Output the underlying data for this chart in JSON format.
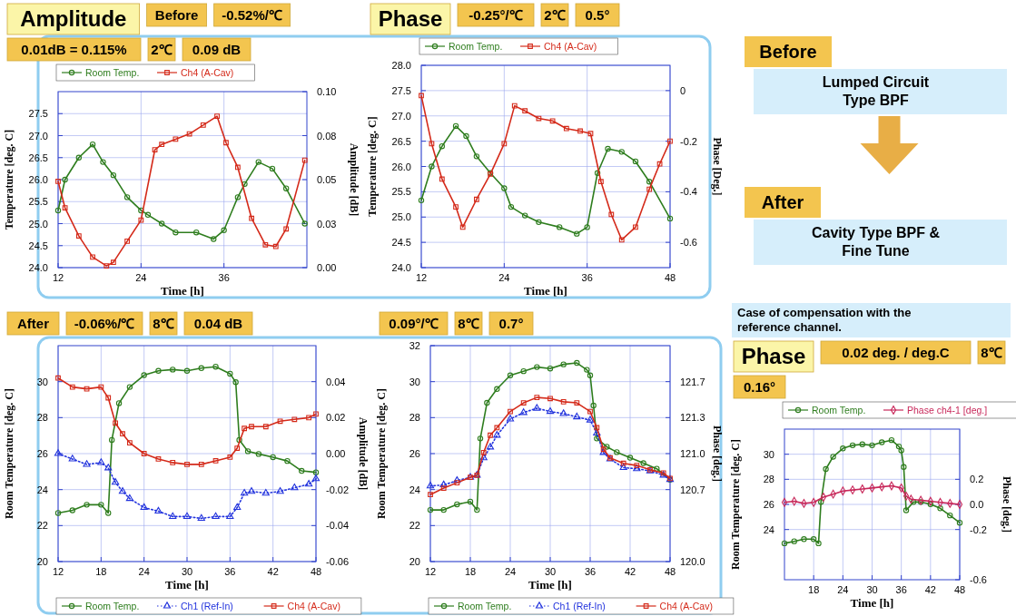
{
  "chart_data": [
    {
      "type": "line",
      "title": "Amplitude",
      "xlabel": "Time [h]",
      "ylabel": "Temperature [deg. C]",
      "y2label": "Amplitude [dB]",
      "xlim": [
        12,
        48
      ],
      "xticks": [
        12,
        24,
        36
      ],
      "ylim": [
        24,
        28
      ],
      "yticks": [
        {
          "value": 24,
          "label": "24.0"
        },
        {
          "value": 24.5,
          "label": "24.5"
        },
        {
          "value": 25,
          "label": "25.0"
        },
        {
          "value": 25.5,
          "label": "25.5"
        },
        {
          "value": 26,
          "label": "26.0"
        },
        {
          "value": 26.5,
          "label": "26.5"
        },
        {
          "value": 27,
          "label": "27.0"
        },
        {
          "value": 27.5,
          "label": "27.5"
        }
      ],
      "y2lim": [
        0,
        0.1
      ],
      "y2ticks": [
        {
          "value": 0,
          "label": "0.00"
        },
        {
          "value": 0.025,
          "label": "0.03"
        },
        0.05,
        {
          "value": 0.075,
          "label": "0.08"
        },
        {
          "value": 0.1,
          "label": "0.10"
        }
      ],
      "grid": true,
      "legend": "top",
      "annotations": [
        "Before",
        "-0.52%/℃",
        "0.01dB = 0.115%",
        "2℃",
        "0.09 dB"
      ],
      "series": [
        {
          "name": "Room Temp.",
          "color": "#2e7d1e",
          "marker": "circle",
          "line_style": "solid",
          "x": [
            12,
            13,
            15,
            17,
            18.5,
            20,
            22,
            24,
            25,
            27,
            29,
            32,
            34.5,
            36,
            38,
            39,
            41,
            43,
            45,
            47.7
          ],
          "values": [
            25.3,
            26.0,
            26.5,
            26.8,
            26.4,
            26.1,
            25.6,
            25.3,
            25.2,
            25.0,
            24.8,
            24.8,
            24.65,
            24.85,
            25.6,
            25.9,
            26.4,
            26.25,
            25.8,
            25.0
          ]
        },
        {
          "name": "Ch4 (A-Cav)",
          "color": "#d42a1a",
          "marker": "square",
          "line_style": "solid",
          "axis": "y2",
          "x": [
            12,
            13,
            15,
            17,
            19,
            20,
            22,
            24,
            26,
            27,
            29,
            31,
            33,
            35,
            36.3,
            38,
            40,
            42,
            43.5,
            45,
            47.7
          ],
          "values": [
            0.049,
            0.034,
            0.018,
            0.006,
            0.001,
            0.003,
            0.015,
            0.027,
            0.067,
            0.07,
            0.073,
            0.076,
            0.081,
            0.086,
            0.071,
            0.057,
            0.028,
            0.013,
            0.012,
            0.022,
            0.061
          ]
        }
      ]
    },
    {
      "type": "line",
      "title": "Phase",
      "xlabel": "Time [h]",
      "ylabel": "Temperature [deg. C]",
      "y2label": "Phase [Deg.]",
      "xlim": [
        12,
        48
      ],
      "xticks": [
        12,
        24,
        36,
        48
      ],
      "ylim": [
        24,
        28
      ],
      "yticks": [
        {
          "value": 24,
          "label": "24.0"
        },
        {
          "value": 24.5,
          "label": "24.5"
        },
        {
          "value": 25,
          "label": "25.0"
        },
        {
          "value": 25.5,
          "label": "25.5"
        },
        {
          "value": 26,
          "label": "26.0"
        },
        {
          "value": 26.5,
          "label": "26.5"
        },
        {
          "value": 27,
          "label": "27.0"
        },
        {
          "value": 27.5,
          "label": "27.5"
        },
        {
          "value": 28,
          "label": "28.0"
        }
      ],
      "y2lim": [
        -0.7,
        0.1
      ],
      "y2ticks": [
        0,
        -0.2,
        -0.4,
        -0.6
      ],
      "grid": true,
      "legend": "top",
      "annotations": [
        "-0.25°/℃",
        "2℃",
        "0.5°"
      ],
      "series": [
        {
          "name": "Room Temp.",
          "color": "#2e7d1e",
          "marker": "circle",
          "line_style": "solid",
          "x": [
            12,
            13.5,
            15,
            17,
            18.5,
            20,
            22,
            24,
            25,
            27,
            29,
            32,
            34.5,
            36,
            37.5,
            39,
            41,
            43,
            45,
            48
          ],
          "values": [
            25.33,
            26.0,
            26.4,
            26.8,
            26.6,
            26.2,
            25.87,
            25.57,
            25.2,
            25.03,
            24.9,
            24.8,
            24.67,
            24.8,
            25.87,
            26.35,
            26.29,
            26.1,
            25.7,
            24.97
          ]
        },
        {
          "name": "Ch4 (A-Cav)",
          "color": "#d42a1a",
          "marker": "square",
          "line_style": "solid",
          "axis": "y2",
          "x": [
            12,
            13.5,
            15,
            17,
            18,
            20,
            22,
            24,
            25.5,
            27,
            29,
            31,
            33,
            35,
            36.5,
            38,
            39.5,
            41,
            43,
            45,
            46.5,
            48
          ],
          "values": [
            -0.02,
            -0.21,
            -0.35,
            -0.46,
            -0.54,
            -0.43,
            -0.33,
            -0.21,
            -0.06,
            -0.08,
            -0.11,
            -0.12,
            -0.15,
            -0.16,
            -0.17,
            -0.36,
            -0.49,
            -0.59,
            -0.54,
            -0.39,
            -0.29,
            -0.2
          ]
        }
      ]
    },
    {
      "type": "other",
      "annotations": [
        "Before",
        "Lumped Circuit Type BPF",
        "After",
        "Cavity Type BPF & Fine Tune"
      ]
    },
    {
      "type": "line",
      "xlabel": "Time [h]",
      "ylabel": "Room Temperature [deg. C]",
      "y2label": "Amplitude [dB]",
      "xlim": [
        12,
        48
      ],
      "xticks": [
        12,
        18,
        24,
        30,
        36,
        42,
        48
      ],
      "ylim": [
        20,
        32
      ],
      "yticks": [
        20,
        22,
        24,
        26,
        28,
        30
      ],
      "y2lim": [
        -0.06,
        0.06
      ],
      "y2ticks": [
        -0.06,
        -0.04,
        -0.02,
        {
          "value": 0,
          "label": "0.00"
        },
        0.02,
        0.04
      ],
      "grid": true,
      "legend": "bottom",
      "annotations": [
        "After",
        "-0.06%/℃",
        "8℃",
        "0.04 dB"
      ],
      "series": [
        {
          "name": "Room Temp.",
          "color": "#2e7d1e",
          "marker": "circle",
          "line_style": "solid",
          "x": [
            12,
            14,
            16,
            18,
            19,
            19.5,
            20.5,
            22,
            24,
            26,
            28,
            30,
            32,
            34,
            36,
            36.8,
            37.3,
            38.5,
            40,
            42,
            44,
            46,
            48
          ],
          "values": [
            22.7,
            22.85,
            23.16,
            23.16,
            22.7,
            26.76,
            28.8,
            29.7,
            30.36,
            30.6,
            30.67,
            30.6,
            30.75,
            30.83,
            30.44,
            29.97,
            26.76,
            26.13,
            25.98,
            25.8,
            25.59,
            25.04,
            24.96
          ]
        },
        {
          "name": "Ch1 (Ref-In)",
          "color": "#2233dd",
          "marker": "triangle",
          "line_style": "dotted",
          "axis": "y2",
          "x": [
            12,
            14,
            16,
            18,
            19,
            20,
            21,
            22,
            24,
            26,
            28,
            30,
            32,
            34,
            36,
            37,
            38,
            39,
            41,
            43,
            45,
            47,
            48
          ],
          "values": [
            0.0,
            -0.003,
            -0.006,
            -0.005,
            -0.008,
            -0.016,
            -0.021,
            -0.025,
            -0.03,
            -0.032,
            -0.035,
            -0.035,
            -0.036,
            -0.035,
            -0.035,
            -0.03,
            -0.022,
            -0.021,
            -0.022,
            -0.021,
            -0.019,
            -0.017,
            -0.014
          ]
        },
        {
          "name": "Ch4 (A-Cav)",
          "color": "#d42a1a",
          "marker": "square",
          "line_style": "solid",
          "axis": "y2",
          "x": [
            12,
            14,
            16,
            18,
            19,
            20,
            21,
            22,
            24,
            26,
            28,
            30,
            32,
            34,
            36,
            37,
            38,
            39,
            41,
            43,
            45,
            47,
            48
          ],
          "values": [
            0.042,
            0.037,
            0.036,
            0.037,
            0.031,
            0.017,
            0.011,
            0.006,
            0.0,
            -0.003,
            -0.005,
            -0.006,
            -0.006,
            -0.004,
            -0.002,
            0.003,
            0.014,
            0.015,
            0.015,
            0.018,
            0.019,
            0.02,
            0.022
          ]
        }
      ]
    },
    {
      "type": "line",
      "xlabel": "Time [h]",
      "ylabel": "Room Temperature [deg. C]",
      "y2label": "Phase [deg.]",
      "xlim": [
        12,
        48
      ],
      "xticks": [
        12,
        18,
        24,
        30,
        36,
        42,
        48
      ],
      "ylim": [
        20,
        32
      ],
      "yticks": [
        20,
        22,
        24,
        26,
        28,
        30,
        32
      ],
      "y2lim": [
        120,
        122
      ],
      "y2ticks": [
        {
          "value": 120,
          "label": "120.0"
        },
        {
          "value": 120.6667,
          "label": "120.7"
        },
        {
          "value": 121,
          "label": "121.0"
        },
        {
          "value": 121.3333,
          "label": "121.3"
        },
        {
          "value": 121.6667,
          "label": "121.7"
        }
      ],
      "grid": true,
      "legend": "bottom",
      "annotations": [
        "0.09°/℃",
        "8℃",
        "0.7°"
      ],
      "series": [
        {
          "name": "Room Temp.",
          "color": "#2e7d1e",
          "marker": "circle",
          "line_style": "solid",
          "x": [
            12,
            14,
            16,
            18,
            19,
            19.5,
            20.5,
            22,
            24,
            26,
            28,
            30,
            32,
            34,
            35.5,
            36,
            36.5,
            37,
            38.5,
            40,
            42,
            44,
            46,
            48
          ],
          "values": [
            22.87,
            22.87,
            23.18,
            23.33,
            22.87,
            26.84,
            28.82,
            29.59,
            30.35,
            30.58,
            30.81,
            30.73,
            30.96,
            31.04,
            30.66,
            30.35,
            28.67,
            26.84,
            26.38,
            26.08,
            25.77,
            25.47,
            25.16,
            24.55
          ]
        },
        {
          "name": "Ch1 (Ref-In)",
          "color": "#2233dd",
          "marker": "triangle",
          "line_style": "dotted",
          "axis": "y2",
          "x": [
            12,
            14,
            16,
            18,
            19,
            20,
            21,
            22,
            24,
            26,
            28,
            30,
            32,
            34,
            36,
            37,
            38,
            39,
            41,
            43,
            45,
            47,
            48
          ],
          "values": [
            120.7,
            120.71,
            120.75,
            120.78,
            120.8,
            120.96,
            121.06,
            121.17,
            121.32,
            121.38,
            121.42,
            121.39,
            121.37,
            121.34,
            121.31,
            121.19,
            121.01,
            120.95,
            120.87,
            120.86,
            120.84,
            120.8,
            120.76
          ]
        },
        {
          "name": "Ch4 (A-Cav)",
          "color": "#d42a1a",
          "marker": "square",
          "line_style": "solid",
          "axis": "y2",
          "x": [
            12,
            14,
            16,
            18,
            19,
            20,
            21,
            22,
            24,
            26,
            28,
            30,
            32,
            34,
            36,
            37,
            38,
            39,
            41,
            43,
            45,
            47,
            48
          ],
          "values": [
            120.62,
            120.68,
            120.73,
            120.78,
            120.8,
            121.01,
            121.17,
            121.24,
            121.39,
            121.47,
            121.52,
            121.51,
            121.48,
            121.47,
            121.39,
            121.24,
            121.04,
            120.96,
            120.91,
            120.89,
            120.85,
            120.82,
            120.77
          ]
        }
      ]
    },
    {
      "type": "line",
      "title": "Phase",
      "subtitle": "Case of compensation with the reference channel.",
      "xlabel": "Time [h]",
      "ylabel": "Room Temperature [deg. C]",
      "y2label": "Phase [deg.]",
      "xlim": [
        12,
        48
      ],
      "xticks": [
        18,
        24,
        30,
        36,
        42,
        48
      ],
      "ylim": [
        20,
        32
      ],
      "yticks": [
        24,
        26,
        28,
        30
      ],
      "y2lim": [
        -0.6,
        0.6
      ],
      "y2ticks": [
        -0.6,
        -0.2,
        {
          "value": 0,
          "label": "0.0"
        },
        0.2
      ],
      "grid": true,
      "legend": "top",
      "annotations": [
        "0.02 deg. / deg.C",
        "8℃",
        "0.16°"
      ],
      "series": [
        {
          "name": "Room Temp.",
          "color": "#2e7d1e",
          "marker": "circle",
          "line_style": "solid",
          "x": [
            12,
            14,
            16,
            18,
            19,
            19.5,
            20.5,
            22,
            24,
            26,
            28,
            30,
            32,
            34,
            35.5,
            36,
            36.5,
            37,
            38.5,
            40,
            42,
            44,
            46,
            48
          ],
          "values": [
            22.9,
            23.06,
            23.23,
            23.23,
            22.9,
            26.19,
            28.82,
            29.8,
            30.46,
            30.71,
            30.79,
            30.71,
            30.95,
            31.12,
            30.62,
            30.3,
            28.98,
            25.53,
            26.19,
            26.19,
            26.02,
            25.69,
            25.12,
            24.54
          ]
        },
        {
          "name": "Phase ch4-1 [deg.]",
          "color": "#c8285a",
          "marker": "diamond",
          "line_style": "solid",
          "axis": "y2",
          "x": [
            12,
            14,
            16,
            18,
            20,
            22,
            24,
            26,
            28,
            30,
            32,
            34,
            36,
            37,
            38,
            40,
            42,
            44,
            46,
            48
          ],
          "values": [
            0.016,
            0.025,
            0.008,
            0.016,
            0.058,
            0.082,
            0.107,
            0.115,
            0.123,
            0.131,
            0.14,
            0.148,
            0.131,
            0.066,
            0.041,
            0.033,
            0.025,
            0.016,
            0.008,
            0.0
          ]
        }
      ]
    }
  ]
}
